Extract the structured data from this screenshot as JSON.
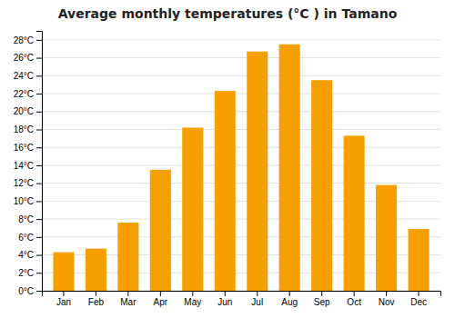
{
  "chart_data": {
    "type": "bar",
    "title": "Average monthly temperatures (°C ) in Tamano",
    "categories": [
      "Jan",
      "Feb",
      "Mar",
      "Apr",
      "May",
      "Jun",
      "Jul",
      "Aug",
      "Sep",
      "Oct",
      "Nov",
      "Dec"
    ],
    "values": [
      4.3,
      4.7,
      7.6,
      13.5,
      18.2,
      22.3,
      26.7,
      27.5,
      23.5,
      17.3,
      11.8,
      6.9
    ],
    "color": "#F5A000",
    "ylim": [
      0,
      29
    ],
    "yticks": [
      {
        "value": 0,
        "label": "0°C"
      },
      {
        "value": 2,
        "label": "2°C"
      },
      {
        "value": 4,
        "label": "4°C"
      },
      {
        "value": 6,
        "label": "6°C"
      },
      {
        "value": 8,
        "label": "8°C"
      },
      {
        "value": 10,
        "label": "10°C"
      },
      {
        "value": 12,
        "label": "12°C"
      },
      {
        "value": 14,
        "label": "14°C"
      },
      {
        "value": 16,
        "label": "16°C"
      },
      {
        "value": 18,
        "label": "18°C"
      },
      {
        "value": 20,
        "label": "20°C"
      },
      {
        "value": 22,
        "label": "22°C"
      },
      {
        "value": 24,
        "label": "24°C"
      },
      {
        "value": 26,
        "label": "26°C"
      },
      {
        "value": 28,
        "label": "28°C"
      }
    ],
    "grid": true
  }
}
